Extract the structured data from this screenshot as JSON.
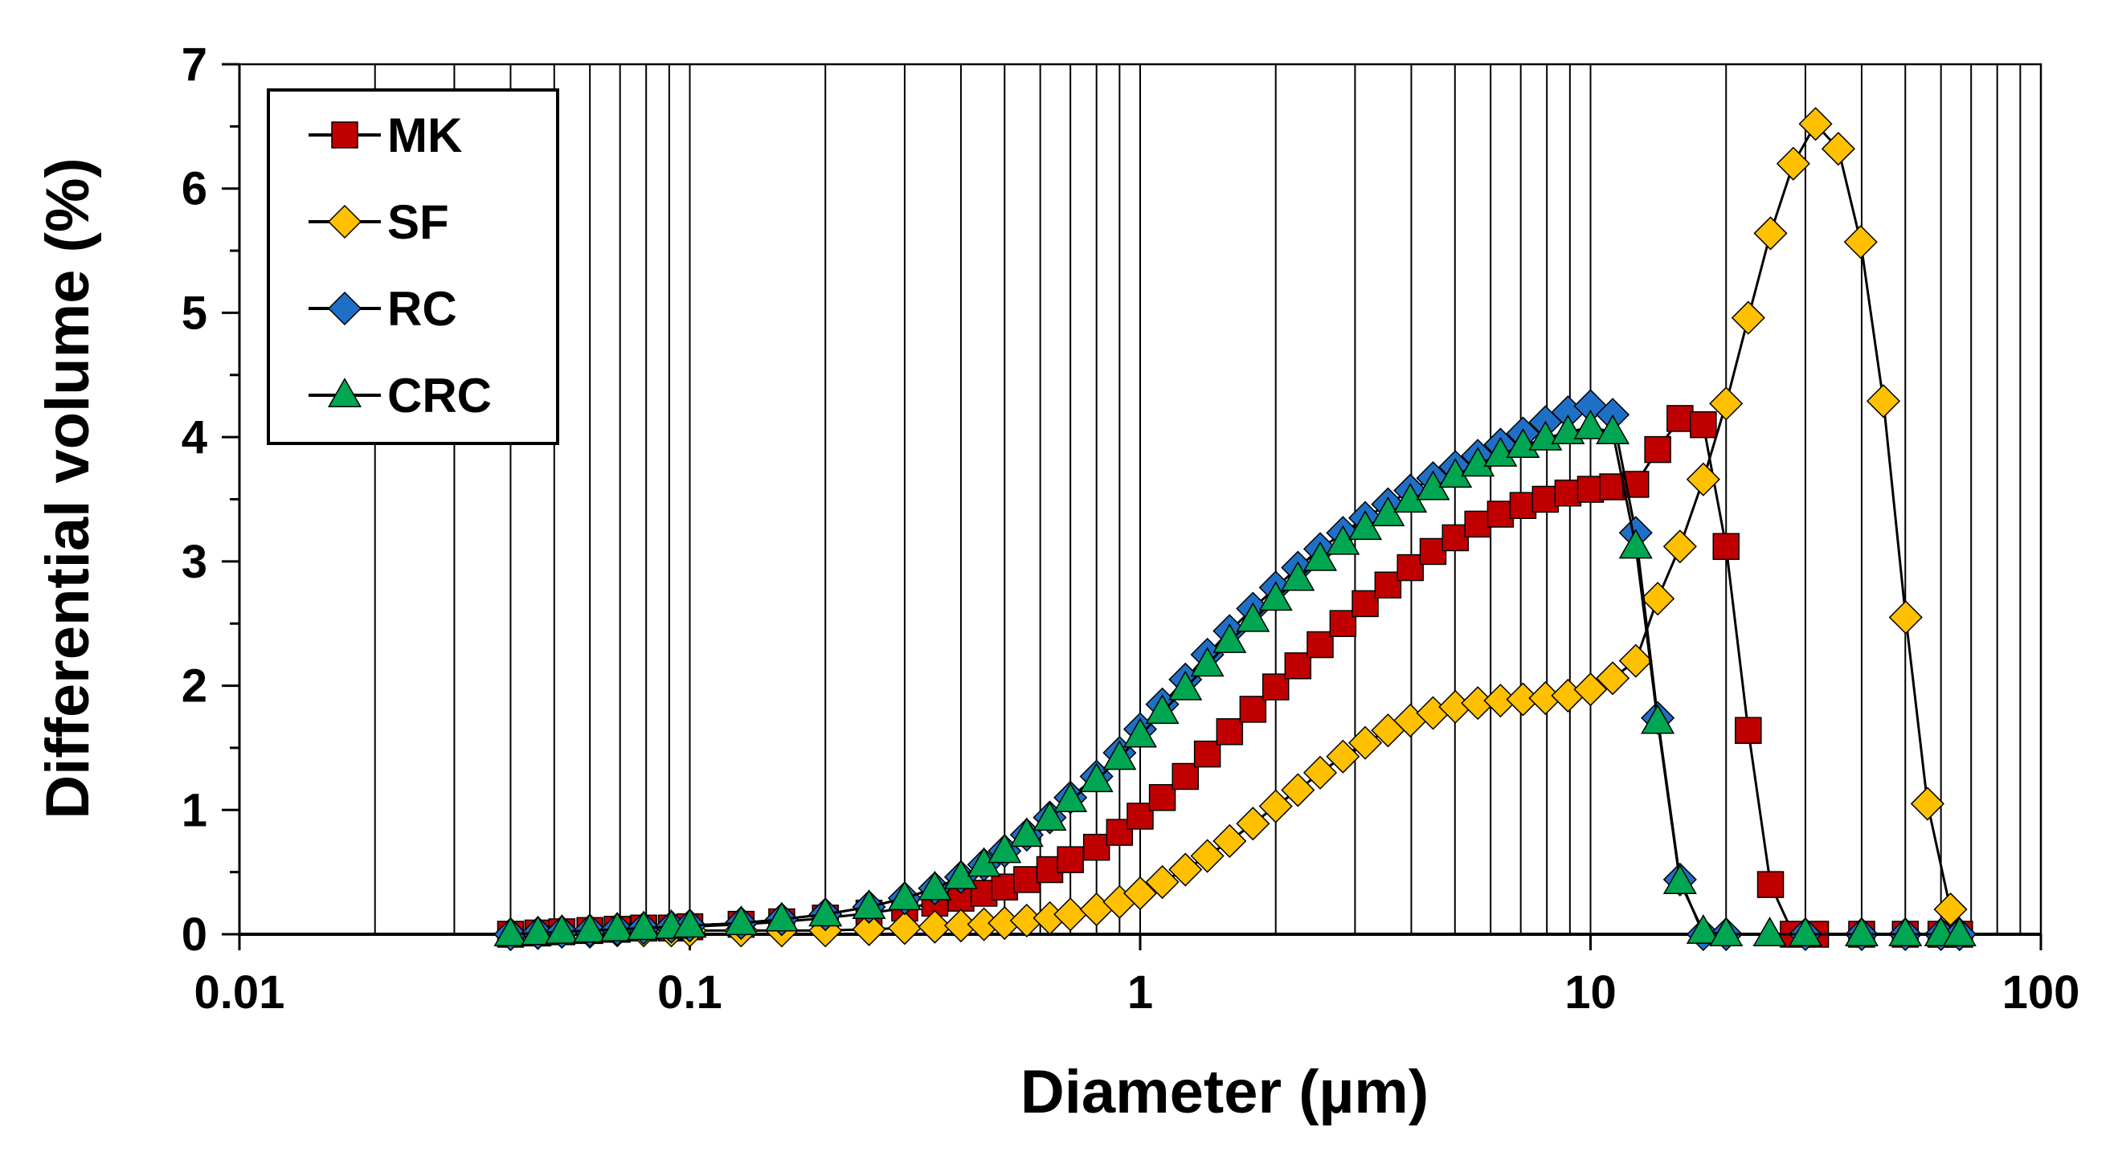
{
  "chart_data": {
    "type": "scatter",
    "xscale": "log",
    "xlabel": "Diameter (µm)",
    "ylabel": "Differential volume (%)",
    "xlim": [
      0.01,
      100
    ],
    "ylim": [
      0,
      7
    ],
    "xticks": [
      "0.01",
      "0.1",
      "1",
      "10",
      "100"
    ],
    "yticks": [
      "0",
      "1",
      "2",
      "3",
      "4",
      "5",
      "6",
      "7"
    ],
    "grid": "vertical-log-minor",
    "legend": "top-left",
    "series": [
      {
        "name": "MK",
        "marker": "square",
        "color": "#C00000",
        "x": [
          0.04,
          0.046,
          0.052,
          0.06,
          0.069,
          0.079,
          0.091,
          0.1,
          0.13,
          0.16,
          0.2,
          0.25,
          0.3,
          0.35,
          0.4,
          0.45,
          0.5,
          0.56,
          0.63,
          0.7,
          0.8,
          0.9,
          1.0,
          1.12,
          1.26,
          1.41,
          1.58,
          1.78,
          2.0,
          2.24,
          2.51,
          2.82,
          3.16,
          3.55,
          3.98,
          4.47,
          5.01,
          5.62,
          6.31,
          7.08,
          7.94,
          8.91,
          10.0,
          11.2,
          12.6,
          14.1,
          15.8,
          17.8,
          20.0,
          22.4,
          25.1,
          28.2,
          31.6,
          40,
          50,
          60,
          66
        ],
        "y": [
          0.0,
          0.01,
          0.02,
          0.03,
          0.04,
          0.05,
          0.05,
          0.06,
          0.08,
          0.1,
          0.13,
          0.17,
          0.21,
          0.25,
          0.29,
          0.33,
          0.38,
          0.44,
          0.52,
          0.6,
          0.7,
          0.82,
          0.95,
          1.1,
          1.27,
          1.45,
          1.63,
          1.81,
          1.99,
          2.16,
          2.33,
          2.5,
          2.66,
          2.81,
          2.95,
          3.08,
          3.19,
          3.3,
          3.38,
          3.45,
          3.5,
          3.55,
          3.58,
          3.6,
          3.62,
          3.9,
          4.15,
          4.1,
          3.12,
          1.64,
          0.4,
          0.0,
          0.0,
          0.0,
          0.0,
          0.0,
          0.0
        ]
      },
      {
        "name": "SF",
        "marker": "diamond",
        "color": "#FFC000",
        "x": [
          0.04,
          0.046,
          0.052,
          0.06,
          0.069,
          0.079,
          0.091,
          0.1,
          0.13,
          0.16,
          0.2,
          0.25,
          0.3,
          0.35,
          0.4,
          0.45,
          0.5,
          0.56,
          0.63,
          0.7,
          0.8,
          0.9,
          1.0,
          1.12,
          1.26,
          1.41,
          1.58,
          1.78,
          2.0,
          2.24,
          2.51,
          2.82,
          3.16,
          3.55,
          3.98,
          4.47,
          5.01,
          5.62,
          6.31,
          7.08,
          7.94,
          8.91,
          10.0,
          11.2,
          12.6,
          14.1,
          15.8,
          17.8,
          20.0,
          22.4,
          25.1,
          28.2,
          31.6,
          35.5,
          39.8,
          44.7,
          50.1,
          56,
          63,
          66
        ],
        "y": [
          0.0,
          0.01,
          0.02,
          0.02,
          0.03,
          0.03,
          0.03,
          0.03,
          0.03,
          0.03,
          0.03,
          0.04,
          0.05,
          0.06,
          0.07,
          0.08,
          0.09,
          0.11,
          0.13,
          0.16,
          0.2,
          0.26,
          0.33,
          0.42,
          0.52,
          0.63,
          0.75,
          0.89,
          1.03,
          1.16,
          1.3,
          1.43,
          1.54,
          1.64,
          1.72,
          1.78,
          1.83,
          1.86,
          1.88,
          1.89,
          1.9,
          1.92,
          1.97,
          2.06,
          2.2,
          2.7,
          3.12,
          3.66,
          4.27,
          4.96,
          5.64,
          6.2,
          6.52,
          6.32,
          5.57,
          4.29,
          2.55,
          1.05,
          0.2,
          0.0
        ]
      },
      {
        "name": "RC",
        "marker": "diamond",
        "color": "#1F6FC6",
        "x": [
          0.04,
          0.046,
          0.052,
          0.06,
          0.069,
          0.079,
          0.091,
          0.1,
          0.13,
          0.16,
          0.2,
          0.25,
          0.3,
          0.35,
          0.4,
          0.45,
          0.5,
          0.56,
          0.63,
          0.7,
          0.8,
          0.9,
          1.0,
          1.12,
          1.26,
          1.41,
          1.58,
          1.78,
          2.0,
          2.24,
          2.51,
          2.82,
          3.16,
          3.55,
          3.98,
          4.47,
          5.01,
          5.62,
          6.31,
          7.08,
          7.94,
          8.91,
          10.0,
          11.2,
          12.6,
          14.1,
          15.8,
          17.8,
          20.0,
          30,
          40,
          50,
          60,
          66
        ],
        "y": [
          0.0,
          0.01,
          0.02,
          0.03,
          0.04,
          0.05,
          0.06,
          0.07,
          0.09,
          0.12,
          0.16,
          0.22,
          0.29,
          0.37,
          0.46,
          0.56,
          0.67,
          0.8,
          0.94,
          1.1,
          1.27,
          1.46,
          1.65,
          1.85,
          2.05,
          2.25,
          2.44,
          2.62,
          2.79,
          2.95,
          3.1,
          3.23,
          3.35,
          3.46,
          3.57,
          3.67,
          3.76,
          3.85,
          3.94,
          4.03,
          4.12,
          4.2,
          4.25,
          4.18,
          3.23,
          1.74,
          0.44,
          0.0,
          0.0,
          0.0,
          0.0,
          0.0,
          0.0,
          0.0
        ]
      },
      {
        "name": "CRC",
        "marker": "triangle",
        "color": "#00A651",
        "x": [
          0.04,
          0.046,
          0.052,
          0.06,
          0.069,
          0.079,
          0.091,
          0.1,
          0.13,
          0.16,
          0.2,
          0.25,
          0.3,
          0.35,
          0.4,
          0.45,
          0.5,
          0.56,
          0.63,
          0.7,
          0.8,
          0.9,
          1.0,
          1.12,
          1.26,
          1.41,
          1.58,
          1.78,
          2.0,
          2.24,
          2.51,
          2.82,
          3.16,
          3.55,
          3.98,
          4.47,
          5.01,
          5.62,
          6.31,
          7.08,
          7.94,
          8.91,
          10.0,
          11.2,
          12.6,
          14.1,
          15.8,
          17.8,
          20.0,
          25,
          30,
          40,
          50,
          60,
          66
        ],
        "y": [
          0.0,
          0.01,
          0.02,
          0.03,
          0.04,
          0.05,
          0.06,
          0.07,
          0.09,
          0.12,
          0.16,
          0.22,
          0.29,
          0.37,
          0.46,
          0.56,
          0.67,
          0.8,
          0.93,
          1.08,
          1.24,
          1.42,
          1.6,
          1.79,
          1.98,
          2.17,
          2.36,
          2.53,
          2.7,
          2.86,
          3.02,
          3.15,
          3.27,
          3.38,
          3.49,
          3.59,
          3.69,
          3.78,
          3.86,
          3.93,
          3.99,
          4.04,
          4.08,
          4.04,
          3.12,
          1.71,
          0.42,
          0.02,
          0.0,
          0.0,
          0.0,
          0.0,
          0.0,
          0.0,
          0.0
        ]
      }
    ]
  }
}
